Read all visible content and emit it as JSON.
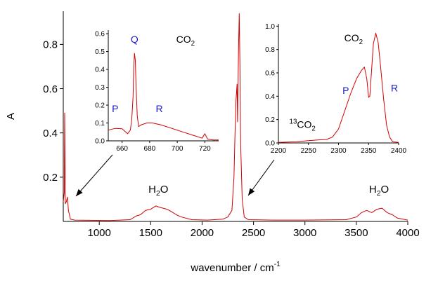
{
  "chart_data": [
    {
      "id": "main",
      "type": "line",
      "xlabel": "wavenumber / cm",
      "xlabel_sup": "-1",
      "ylabel": "A",
      "xlim": [
        650,
        4000
      ],
      "ylim": [
        0,
        0.95
      ],
      "xticks": [
        1000,
        1500,
        2000,
        2500,
        3000,
        3500,
        4000
      ],
      "xtick_labels": [
        "1000",
        "1500",
        "2000",
        "2500",
        "3000",
        "3500",
        "4000"
      ],
      "yticks": [
        0.2,
        0.4,
        0.6,
        0.8
      ],
      "ytick_labels": [
        "0.2",
        "0.4",
        "0.6",
        "0.8"
      ],
      "series": [
        {
          "color": "#d40000",
          "points": [
            [
              650,
              0.09
            ],
            [
              660,
              0.13
            ],
            [
              664,
              0.49
            ],
            [
              667,
              0.3
            ],
            [
              670,
              0.08
            ],
            [
              680,
              0.09
            ],
            [
              690,
              0.11
            ],
            [
              700,
              0.05
            ],
            [
              720,
              0.01
            ],
            [
              760,
              0.006
            ],
            [
              900,
              0.005
            ],
            [
              1100,
              0.004
            ],
            [
              1300,
              0.008
            ],
            [
              1360,
              0.025
            ],
            [
              1400,
              0.03
            ],
            [
              1450,
              0.05
            ],
            [
              1500,
              0.055
            ],
            [
              1550,
              0.07
            ],
            [
              1580,
              0.065
            ],
            [
              1620,
              0.06
            ],
            [
              1660,
              0.055
            ],
            [
              1700,
              0.045
            ],
            [
              1750,
              0.03
            ],
            [
              1800,
              0.02
            ],
            [
              1900,
              0.008
            ],
            [
              2050,
              0.006
            ],
            [
              2200,
              0.01
            ],
            [
              2250,
              0.02
            ],
            [
              2290,
              0.05
            ],
            [
              2310,
              0.2
            ],
            [
              2320,
              0.4
            ],
            [
              2330,
              0.55
            ],
            [
              2340,
              0.62
            ],
            [
              2345,
              0.45
            ],
            [
              2350,
              0.65
            ],
            [
              2355,
              0.8
            ],
            [
              2361,
              0.94
            ],
            [
              2368,
              0.7
            ],
            [
              2375,
              0.35
            ],
            [
              2390,
              0.1
            ],
            [
              2410,
              0.02
            ],
            [
              2450,
              0.008
            ],
            [
              2700,
              0.006
            ],
            [
              3000,
              0.006
            ],
            [
              3400,
              0.008
            ],
            [
              3500,
              0.02
            ],
            [
              3550,
              0.04
            ],
            [
              3600,
              0.05
            ],
            [
              3650,
              0.04
            ],
            [
              3700,
              0.055
            ],
            [
              3750,
              0.06
            ],
            [
              3800,
              0.04
            ],
            [
              3850,
              0.03
            ],
            [
              3900,
              0.015
            ],
            [
              4000,
              0.006
            ]
          ]
        }
      ],
      "annotations": [
        {
          "text": "H",
          "sub": "2",
          "tail": "O",
          "x": 1575,
          "y": 0.13
        },
        {
          "text": "H",
          "sub": "2",
          "tail": "O",
          "x": 3720,
          "y": 0.13
        }
      ]
    },
    {
      "id": "inset-left",
      "type": "line",
      "xlim": [
        650,
        730
      ],
      "ylim": [
        0,
        0.62
      ],
      "xticks": [
        660,
        680,
        700,
        720
      ],
      "xtick_labels": [
        "660",
        "680",
        "700",
        "720"
      ],
      "yticks": [
        0.0,
        0.1,
        0.2,
        0.3,
        0.4,
        0.5,
        0.6
      ],
      "ytick_labels": [
        "0.0",
        "0.1",
        "0.2",
        "0.3",
        "0.4",
        "0.5",
        "0.6"
      ],
      "series": [
        {
          "color": "#d40000",
          "points": [
            [
              650,
              0.06
            ],
            [
              655,
              0.07
            ],
            [
              660,
              0.068
            ],
            [
              664,
              0.04
            ],
            [
              666,
              0.06
            ],
            [
              667,
              0.12
            ],
            [
              668,
              0.25
            ],
            [
              668.5,
              0.42
            ],
            [
              669,
              0.49
            ],
            [
              669.6,
              0.45
            ],
            [
              670.2,
              0.3
            ],
            [
              671,
              0.14
            ],
            [
              672,
              0.08
            ],
            [
              674,
              0.09
            ],
            [
              678,
              0.1
            ],
            [
              682,
              0.1
            ],
            [
              688,
              0.09
            ],
            [
              696,
              0.07
            ],
            [
              704,
              0.05
            ],
            [
              712,
              0.03
            ],
            [
              718,
              0.015
            ],
            [
              720,
              0.04
            ],
            [
              722,
              0.01
            ],
            [
              726,
              0.005
            ],
            [
              730,
              0.005
            ]
          ]
        }
      ],
      "annotations": [
        {
          "text": "CO",
          "sub": "2",
          "x": 706,
          "y": 0.55,
          "color": "black"
        },
        {
          "text": "Q",
          "x": 669,
          "y": 0.55,
          "color": "blue"
        },
        {
          "text": "P",
          "x": 655,
          "y": 0.16,
          "color": "blue"
        },
        {
          "text": "R",
          "x": 687,
          "y": 0.16,
          "color": "blue"
        }
      ]
    },
    {
      "id": "inset-right",
      "type": "line",
      "xlim": [
        2200,
        2400
      ],
      "ylim": [
        0,
        1.02
      ],
      "xticks": [
        2200,
        2250,
        2300,
        2350,
        2400
      ],
      "xtick_labels": [
        "2200",
        "2250",
        "2300",
        "2350",
        "2400"
      ],
      "yticks": [
        0.0,
        0.2,
        0.4,
        0.6,
        0.8,
        1.0
      ],
      "ytick_labels": [
        "0.0",
        "0.2",
        "0.4",
        "0.6",
        "0.8",
        "1.0"
      ],
      "series": [
        {
          "color": "#d40000",
          "points": [
            [
              2200,
              0.005
            ],
            [
              2230,
              0.01
            ],
            [
              2250,
              0.02
            ],
            [
              2265,
              0.025
            ],
            [
              2280,
              0.03
            ],
            [
              2290,
              0.05
            ],
            [
              2300,
              0.12
            ],
            [
              2310,
              0.27
            ],
            [
              2320,
              0.42
            ],
            [
              2330,
              0.55
            ],
            [
              2338,
              0.62
            ],
            [
              2343,
              0.65
            ],
            [
              2347,
              0.55
            ],
            [
              2350,
              0.39
            ],
            [
              2352,
              0.4
            ],
            [
              2355,
              0.62
            ],
            [
              2358,
              0.85
            ],
            [
              2362,
              0.94
            ],
            [
              2366,
              0.86
            ],
            [
              2370,
              0.65
            ],
            [
              2375,
              0.38
            ],
            [
              2380,
              0.15
            ],
            [
              2385,
              0.05
            ],
            [
              2390,
              0.01
            ],
            [
              2400,
              0.005
            ]
          ]
        }
      ],
      "annotations": [
        {
          "text": "CO",
          "sub": "2",
          "x": 2325,
          "y": 0.87,
          "color": "black"
        },
        {
          "text": "P",
          "x": 2312,
          "y": 0.42,
          "color": "blue"
        },
        {
          "text": "R",
          "x": 2393,
          "y": 0.44,
          "color": "blue"
        },
        {
          "sup": "13",
          "text": "CO",
          "sub": "2",
          "x": 2240,
          "y": 0.13,
          "color": "black"
        }
      ]
    }
  ]
}
